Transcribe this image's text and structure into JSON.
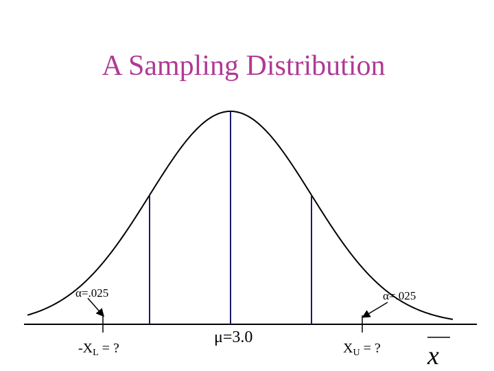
{
  "title": "A Sampling Distribution",
  "labels": {
    "alpha_left": "α=.025",
    "alpha_right": "α=.025",
    "mu": "μ=3.0",
    "lower_prefix": "-X",
    "lower_sub": "L",
    "lower_suffix": " = ?",
    "upper_prefix": "X",
    "upper_sub": "U",
    "upper_suffix": " = ?",
    "xbar": "x"
  },
  "colors": {
    "title": "#b03a94",
    "curve": "#000000",
    "lines": "#1a1a66",
    "text": "#000000"
  }
}
